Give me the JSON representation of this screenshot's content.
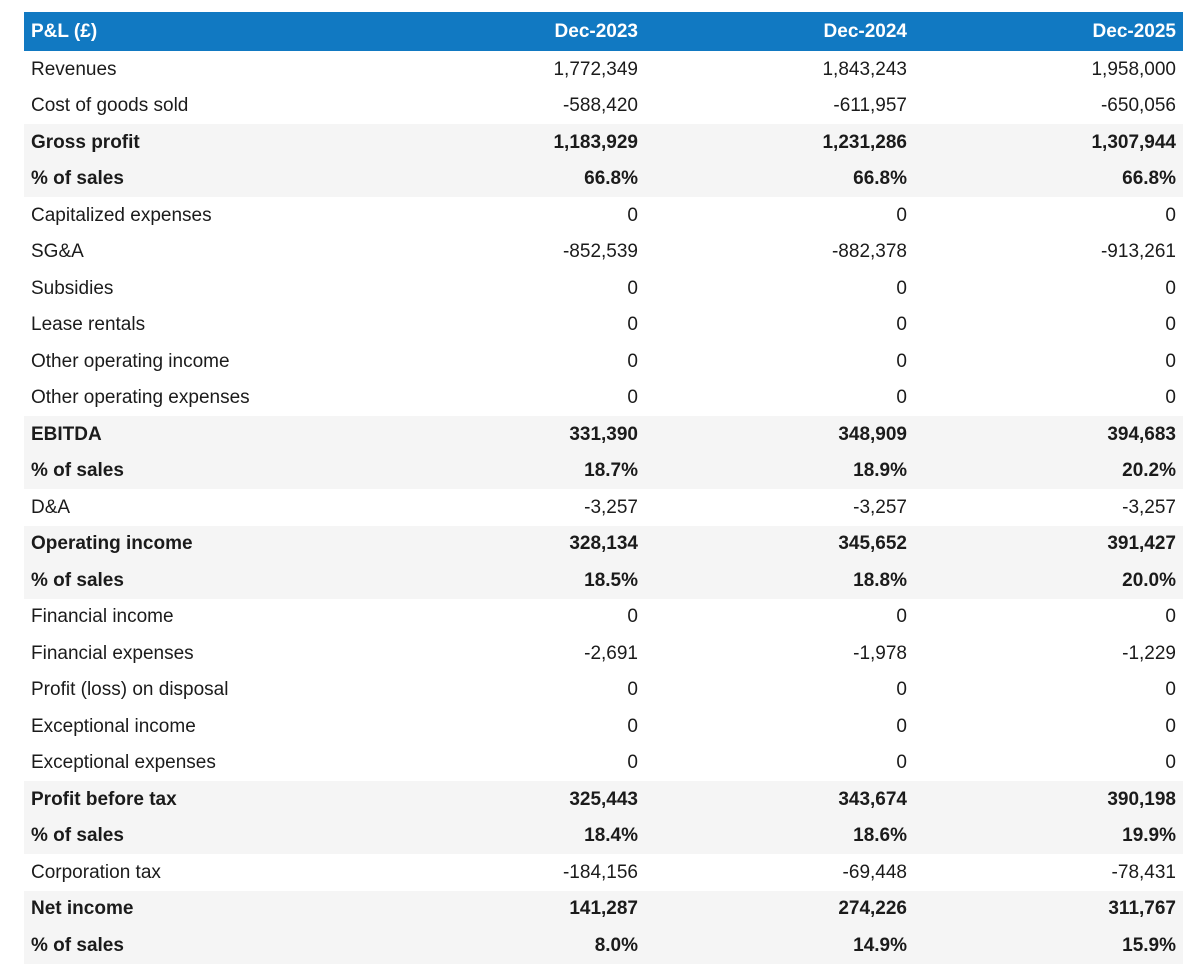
{
  "chart_data": {
    "type": "table",
    "title": "P&L (£)",
    "columns": [
      "Dec-2023",
      "Dec-2024",
      "Dec-2025"
    ],
    "rows": [
      {
        "label": "Revenues",
        "values": [
          "1,772,349",
          "1,843,243",
          "1,958,000"
        ],
        "emphasis": false
      },
      {
        "label": "Cost of goods sold",
        "values": [
          "-588,420",
          "-611,957",
          "-650,056"
        ],
        "emphasis": false
      },
      {
        "label": "Gross profit",
        "values": [
          "1,183,929",
          "1,231,286",
          "1,307,944"
        ],
        "emphasis": true
      },
      {
        "label": "% of sales",
        "values": [
          "66.8%",
          "66.8%",
          "66.8%"
        ],
        "emphasis": true
      },
      {
        "label": "Capitalized expenses",
        "values": [
          "0",
          "0",
          "0"
        ],
        "emphasis": false
      },
      {
        "label": "SG&A",
        "values": [
          "-852,539",
          "-882,378",
          "-913,261"
        ],
        "emphasis": false
      },
      {
        "label": "Subsidies",
        "values": [
          "0",
          "0",
          "0"
        ],
        "emphasis": false
      },
      {
        "label": "Lease rentals",
        "values": [
          "0",
          "0",
          "0"
        ],
        "emphasis": false
      },
      {
        "label": "Other operating income",
        "values": [
          "0",
          "0",
          "0"
        ],
        "emphasis": false
      },
      {
        "label": "Other operating expenses",
        "values": [
          "0",
          "0",
          "0"
        ],
        "emphasis": false
      },
      {
        "label": "EBITDA",
        "values": [
          "331,390",
          "348,909",
          "394,683"
        ],
        "emphasis": true
      },
      {
        "label": "% of sales",
        "values": [
          "18.7%",
          "18.9%",
          "20.2%"
        ],
        "emphasis": true
      },
      {
        "label": "D&A",
        "values": [
          "-3,257",
          "-3,257",
          "-3,257"
        ],
        "emphasis": false
      },
      {
        "label": "Operating income",
        "values": [
          "328,134",
          "345,652",
          "391,427"
        ],
        "emphasis": true
      },
      {
        "label": "% of sales",
        "values": [
          "18.5%",
          "18.8%",
          "20.0%"
        ],
        "emphasis": true
      },
      {
        "label": "Financial income",
        "values": [
          "0",
          "0",
          "0"
        ],
        "emphasis": false
      },
      {
        "label": "Financial expenses",
        "values": [
          "-2,691",
          "-1,978",
          "-1,229"
        ],
        "emphasis": false
      },
      {
        "label": "Profit (loss) on disposal",
        "values": [
          "0",
          "0",
          "0"
        ],
        "emphasis": false
      },
      {
        "label": "Exceptional income",
        "values": [
          "0",
          "0",
          "0"
        ],
        "emphasis": false
      },
      {
        "label": "Exceptional expenses",
        "values": [
          "0",
          "0",
          "0"
        ],
        "emphasis": false
      },
      {
        "label": "Profit before tax",
        "values": [
          "325,443",
          "343,674",
          "390,198"
        ],
        "emphasis": true
      },
      {
        "label": "% of sales",
        "values": [
          "18.4%",
          "18.6%",
          "19.9%"
        ],
        "emphasis": true
      },
      {
        "label": "Corporation tax",
        "values": [
          "-184,156",
          "-69,448",
          "-78,431"
        ],
        "emphasis": false
      },
      {
        "label": "Net income",
        "values": [
          "141,287",
          "274,226",
          "311,767"
        ],
        "emphasis": true
      },
      {
        "label": "% of sales",
        "values": [
          "8.0%",
          "14.9%",
          "15.9%"
        ],
        "emphasis": true
      }
    ],
    "layout": {
      "value_alignment": "right",
      "grid": "off",
      "emphasis_style": "bold-on-gray-band"
    }
  },
  "colors": {
    "header_bg": "#1179C2",
    "header_text": "#FFFFFF",
    "highlight_bg": "#F5F5F5",
    "text": "#1B1B1B"
  }
}
